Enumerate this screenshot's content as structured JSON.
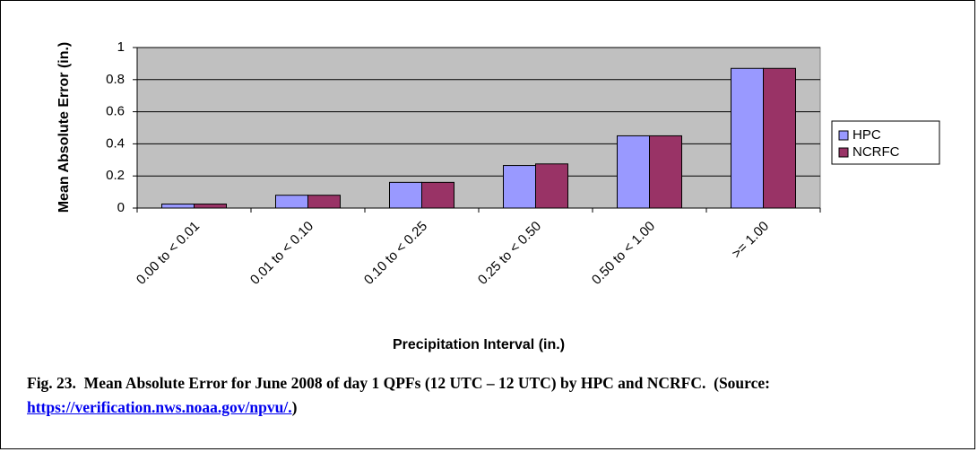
{
  "chart_data": {
    "type": "bar",
    "categories": [
      "0.00 to < 0.01",
      "0.01 to < 0.10",
      "0.10 to < 0.25",
      "0.25 to < 0.50",
      "0.50 to < 1.00",
      ">= 1.00"
    ],
    "series": [
      {
        "name": "HPC",
        "color": "#9999ff",
        "values": [
          0.025,
          0.08,
          0.16,
          0.265,
          0.45,
          0.87
        ]
      },
      {
        "name": "NCRFC",
        "color": "#993366",
        "values": [
          0.025,
          0.08,
          0.16,
          0.275,
          0.45,
          0.87
        ]
      }
    ],
    "ylim": [
      0,
      1
    ],
    "yticks": [
      0,
      0.2,
      0.4,
      0.6,
      0.8,
      1
    ],
    "grid": true,
    "ylabel": "Mean Absolute Error (in.)",
    "xlabel": "Precipitation Interval (in.)",
    "legend": "right"
  },
  "caption": {
    "text": "Fig. 23.  Mean Absolute Error for June 2008 of day 1 QPFs (12 UTC – 12 UTC) by HPC and NCRFC.  (Source:  ",
    "link": "https://verification.nws.noaa.gov/npvu/.",
    "end": ")"
  }
}
